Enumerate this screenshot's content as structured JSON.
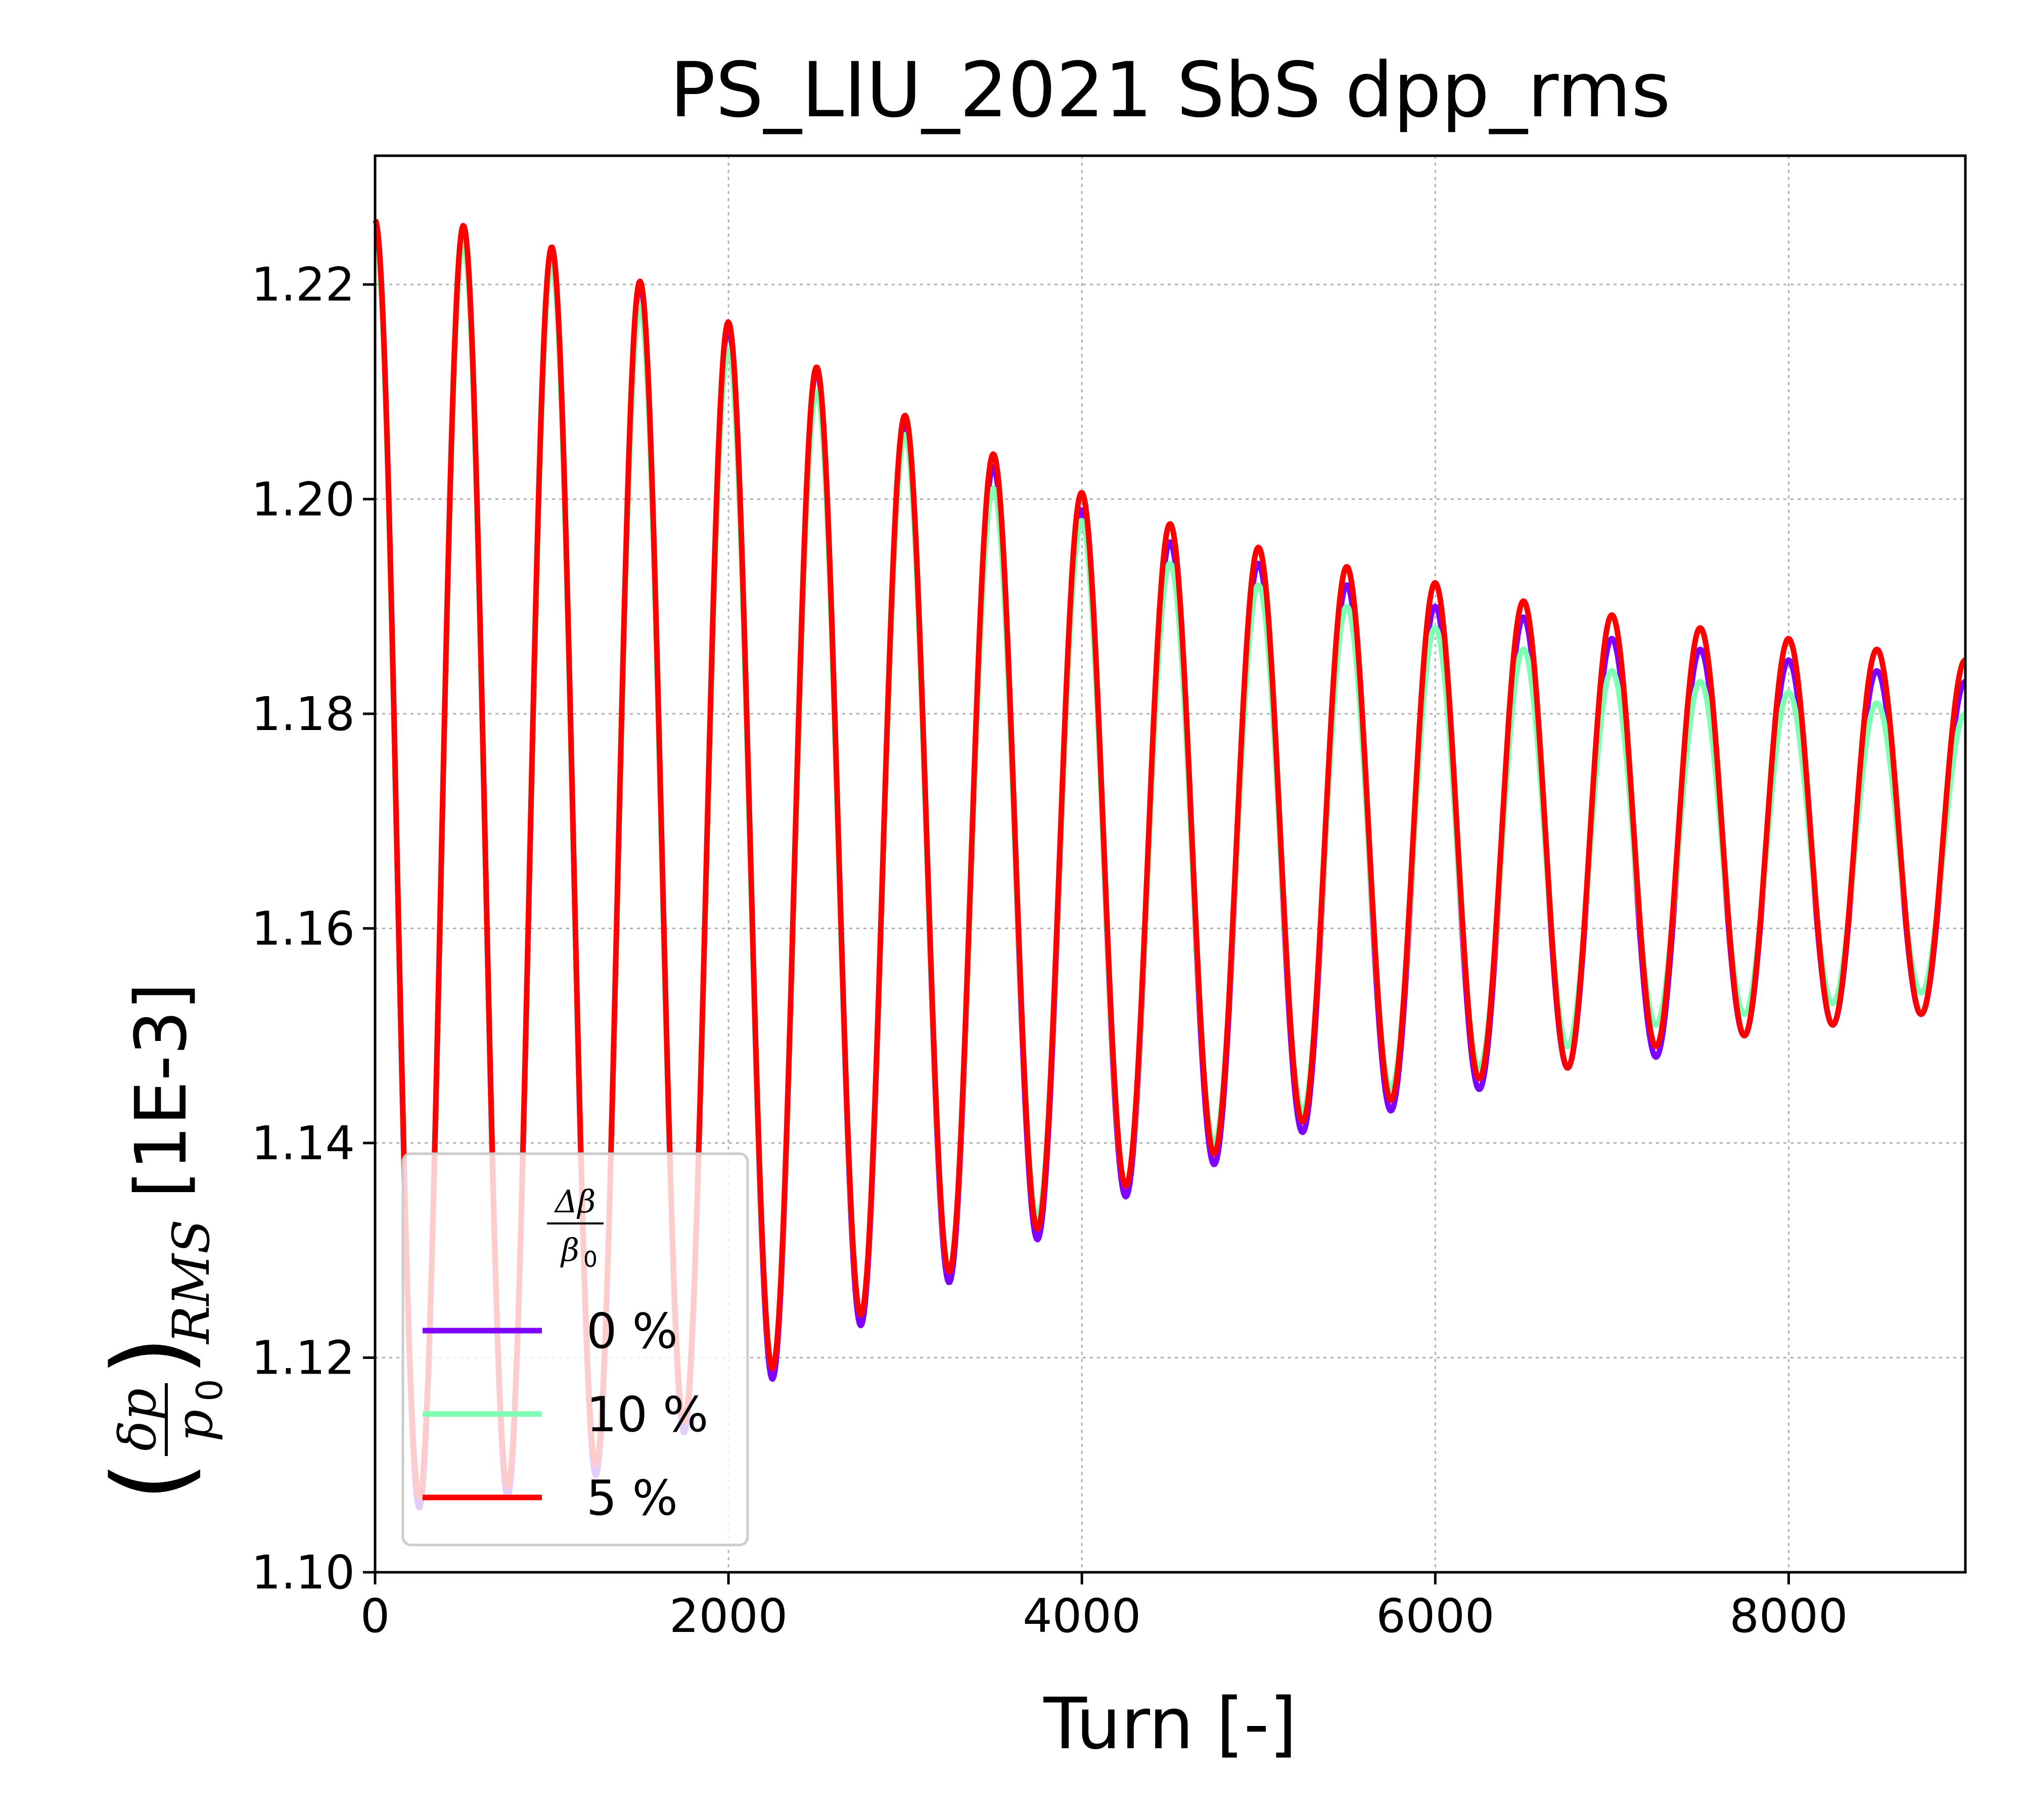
{
  "chart_data": {
    "type": "line",
    "title": "PS_LIU_2021 SbS dpp_rms",
    "xlabel": "Turn [-]",
    "ylabel_unit": "[1E-3]",
    "ylabel_symbols": {
      "numerator": "δp",
      "denominator": "p",
      "denominator_subscript": "0",
      "subscript": "RMS"
    },
    "xlim": [
      0,
      9000
    ],
    "ylim": [
      1.1,
      1.232
    ],
    "xticks": [
      "0",
      "2000",
      "4000",
      "6000",
      "8000"
    ],
    "yticks": [
      "1.10",
      "1.12",
      "1.14",
      "1.16",
      "1.18",
      "1.20",
      "1.22"
    ],
    "grid": true,
    "legend": {
      "placement": "lower-left",
      "title_numerator": "Δβ",
      "title_denominator": "β",
      "title_denominator_subscript": "0"
    },
    "series": [
      {
        "name": "0 %",
        "color": "#7f00ff",
        "peaks": [
          [
            0,
            1.226
          ],
          [
            500,
            1.225
          ],
          [
            1000,
            1.223
          ],
          [
            1500,
            1.22
          ],
          [
            2000,
            1.216
          ],
          [
            2500,
            1.212
          ],
          [
            3000,
            1.207
          ],
          [
            3500,
            1.203
          ],
          [
            4000,
            1.199
          ],
          [
            4500,
            1.196
          ],
          [
            5000,
            1.194
          ],
          [
            5500,
            1.192
          ],
          [
            6000,
            1.19
          ],
          [
            6500,
            1.189
          ],
          [
            7000,
            1.187
          ],
          [
            7500,
            1.186
          ],
          [
            8000,
            1.185
          ],
          [
            8500,
            1.184
          ],
          [
            9000,
            1.183
          ]
        ],
        "troughs": [
          [
            250,
            1.106
          ],
          [
            750,
            1.107
          ],
          [
            1250,
            1.109
          ],
          [
            1750,
            1.113
          ],
          [
            2250,
            1.118
          ],
          [
            2750,
            1.123
          ],
          [
            3250,
            1.127
          ],
          [
            3750,
            1.131
          ],
          [
            4250,
            1.135
          ],
          [
            4750,
            1.138
          ],
          [
            5250,
            1.141
          ],
          [
            5750,
            1.143
          ],
          [
            6250,
            1.145
          ],
          [
            6750,
            1.147
          ],
          [
            7250,
            1.148
          ],
          [
            7750,
            1.15
          ],
          [
            8250,
            1.151
          ],
          [
            8750,
            1.152
          ]
        ]
      },
      {
        "name": "10 %",
        "color": "#80ffb4",
        "peaks": [
          [
            0,
            1.225
          ],
          [
            500,
            1.224
          ],
          [
            1000,
            1.222
          ],
          [
            1500,
            1.218
          ],
          [
            2000,
            1.214
          ],
          [
            2500,
            1.21
          ],
          [
            3000,
            1.206
          ],
          [
            3500,
            1.201
          ],
          [
            4000,
            1.198
          ],
          [
            4500,
            1.194
          ],
          [
            5000,
            1.192
          ],
          [
            5500,
            1.19
          ],
          [
            6000,
            1.188
          ],
          [
            6500,
            1.186
          ],
          [
            7000,
            1.184
          ],
          [
            7500,
            1.183
          ],
          [
            8000,
            1.182
          ],
          [
            8500,
            1.181
          ],
          [
            9000,
            1.18
          ]
        ],
        "troughs": [
          [
            250,
            1.107
          ],
          [
            750,
            1.108
          ],
          [
            1250,
            1.11
          ],
          [
            1750,
            1.114
          ],
          [
            2250,
            1.119
          ],
          [
            2750,
            1.124
          ],
          [
            3250,
            1.128
          ],
          [
            3750,
            1.133
          ],
          [
            4250,
            1.136
          ],
          [
            4750,
            1.14
          ],
          [
            5250,
            1.143
          ],
          [
            5750,
            1.145
          ],
          [
            6250,
            1.147
          ],
          [
            6750,
            1.149
          ],
          [
            7250,
            1.151
          ],
          [
            7750,
            1.152
          ],
          [
            8250,
            1.153
          ],
          [
            8750,
            1.154
          ]
        ]
      },
      {
        "name": "5 %",
        "color": "#ff0000",
        "peaks": [
          [
            0,
            1.226
          ],
          [
            500,
            1.2255
          ],
          [
            1000,
            1.2235
          ],
          [
            1500,
            1.2203
          ],
          [
            2000,
            1.2165
          ],
          [
            2500,
            1.2123
          ],
          [
            3000,
            1.2078
          ],
          [
            3500,
            1.2042
          ],
          [
            4000,
            1.2006
          ],
          [
            4500,
            1.1977
          ],
          [
            5000,
            1.1955
          ],
          [
            5500,
            1.1937
          ],
          [
            6000,
            1.1922
          ],
          [
            6500,
            1.1905
          ],
          [
            7000,
            1.1892
          ],
          [
            7500,
            1.188
          ],
          [
            8000,
            1.187
          ],
          [
            8500,
            1.186
          ],
          [
            9000,
            1.185
          ]
        ],
        "troughs": [
          [
            250,
            1.107
          ],
          [
            750,
            1.108
          ],
          [
            1250,
            1.11
          ],
          [
            1750,
            1.114
          ],
          [
            2250,
            1.119
          ],
          [
            2750,
            1.124
          ],
          [
            3250,
            1.128
          ],
          [
            3750,
            1.132
          ],
          [
            4250,
            1.136
          ],
          [
            4750,
            1.139
          ],
          [
            5250,
            1.142
          ],
          [
            5750,
            1.144
          ],
          [
            6250,
            1.146
          ],
          [
            6750,
            1.147
          ],
          [
            7250,
            1.149
          ],
          [
            7750,
            1.15
          ],
          [
            8250,
            1.151
          ],
          [
            8750,
            1.152
          ]
        ]
      }
    ]
  }
}
